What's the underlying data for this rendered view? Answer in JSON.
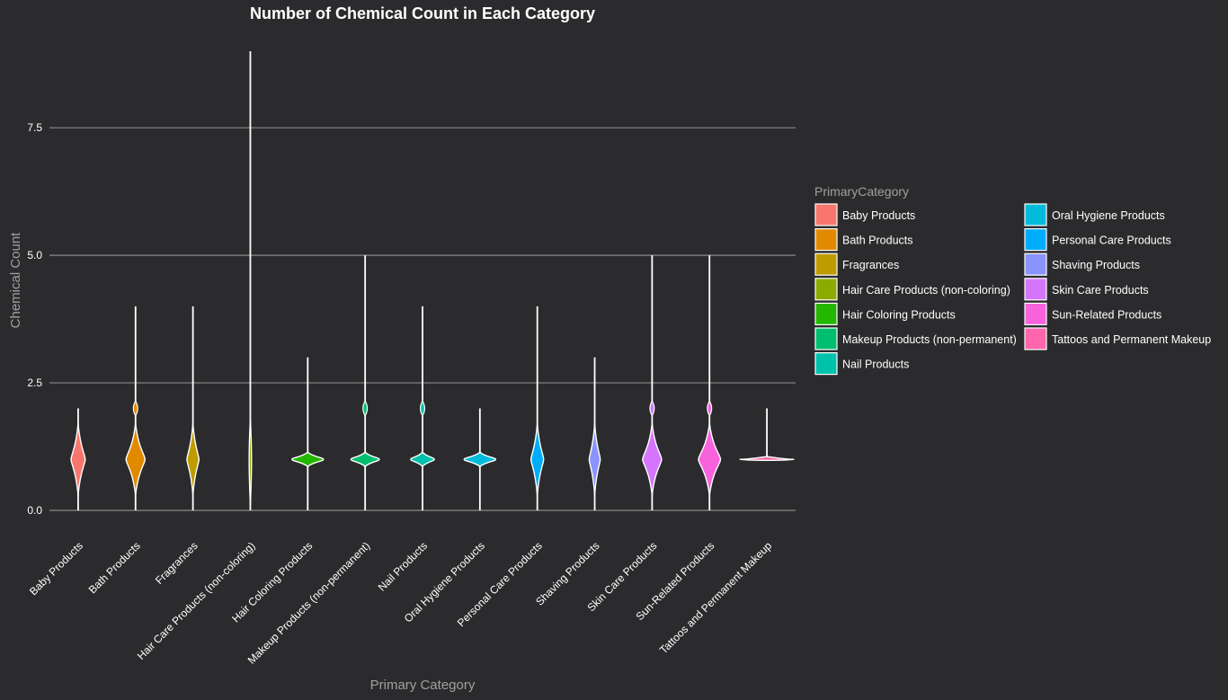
{
  "chart_data": {
    "type": "violin",
    "title": "Number of Chemical Count in Each Category",
    "xlabel": "Primary Category",
    "ylabel": "Chemical Count",
    "ylim": [
      0,
      9
    ],
    "yticks": [
      0,
      2.5,
      5,
      7.5
    ],
    "ytick_labels": [
      "0.0",
      "2.5",
      "5.0",
      "7.5"
    ],
    "grid": "horizontal major",
    "legend_title": "PrimaryCategory",
    "legend_position": "right",
    "categories": [
      "Baby Products",
      "Bath Products",
      "Fragrances",
      "Hair Care Products (non-coloring)",
      "Hair Coloring Products",
      "Makeup Products (non-permanent)",
      "Nail Products",
      "Oral Hygiene Products",
      "Personal Care Products",
      "Shaving Products",
      "Skin Care Products",
      "Sun-Related Products",
      "Tattoos and Permanent Makeup"
    ],
    "series": [
      {
        "name": "Baby Products",
        "color": "#F8766D",
        "min": 0,
        "max": 2,
        "mode": 1,
        "density_width": 0.45,
        "secondary_bulge": [],
        "profile": "diamond"
      },
      {
        "name": "Bath Products",
        "color": "#E18A00",
        "min": 0,
        "max": 4,
        "mode": 1,
        "density_width": 0.6,
        "secondary_bulge": [
          2
        ],
        "profile": "diamond"
      },
      {
        "name": "Fragrances",
        "color": "#BE9C00",
        "min": 0,
        "max": 4,
        "mode": 1,
        "density_width": 0.38,
        "secondary_bulge": [],
        "profile": "diamond"
      },
      {
        "name": "Hair Care Products (non-coloring)",
        "color": "#8CAB00",
        "min": 0,
        "max": 9,
        "mode": 1,
        "density_width": 0.1,
        "secondary_bulge": [],
        "profile": "thin"
      },
      {
        "name": "Hair Coloring Products",
        "color": "#24B700",
        "min": 0,
        "max": 3,
        "mode": 1,
        "density_width": 1.0,
        "secondary_bulge": [],
        "profile": "spike"
      },
      {
        "name": "Makeup Products (non-permanent)",
        "color": "#00BE70",
        "min": 0,
        "max": 5,
        "mode": 1,
        "density_width": 0.9,
        "secondary_bulge": [
          2
        ],
        "profile": "spike"
      },
      {
        "name": "Nail Products",
        "color": "#00C1AB",
        "min": 0,
        "max": 4,
        "mode": 1,
        "density_width": 0.75,
        "secondary_bulge": [
          2
        ],
        "profile": "spike"
      },
      {
        "name": "Oral Hygiene Products",
        "color": "#00BBDA",
        "min": 0,
        "max": 2,
        "mode": 1,
        "density_width": 1.0,
        "secondary_bulge": [],
        "profile": "spike"
      },
      {
        "name": "Personal Care Products",
        "color": "#00ACFC",
        "min": 0,
        "max": 4,
        "mode": 1,
        "density_width": 0.4,
        "secondary_bulge": [],
        "profile": "diamond"
      },
      {
        "name": "Shaving Products",
        "color": "#8B93FF",
        "min": 0,
        "max": 3,
        "mode": 1,
        "density_width": 0.35,
        "secondary_bulge": [],
        "profile": "diamond"
      },
      {
        "name": "Skin Care Products",
        "color": "#D575FE",
        "min": 0,
        "max": 5,
        "mode": 1,
        "density_width": 0.6,
        "secondary_bulge": [
          2
        ],
        "profile": "diamond"
      },
      {
        "name": "Sun-Related Products",
        "color": "#F962DD",
        "min": 0,
        "max": 5,
        "mode": 1,
        "density_width": 0.7,
        "secondary_bulge": [
          2
        ],
        "profile": "diamond"
      },
      {
        "name": "Tattoos and Permanent Makeup",
        "color": "#FF65AC",
        "min": 1,
        "max": 2,
        "mode": 1,
        "density_width": 2.0,
        "secondary_bulge": [],
        "profile": "flat"
      }
    ]
  }
}
